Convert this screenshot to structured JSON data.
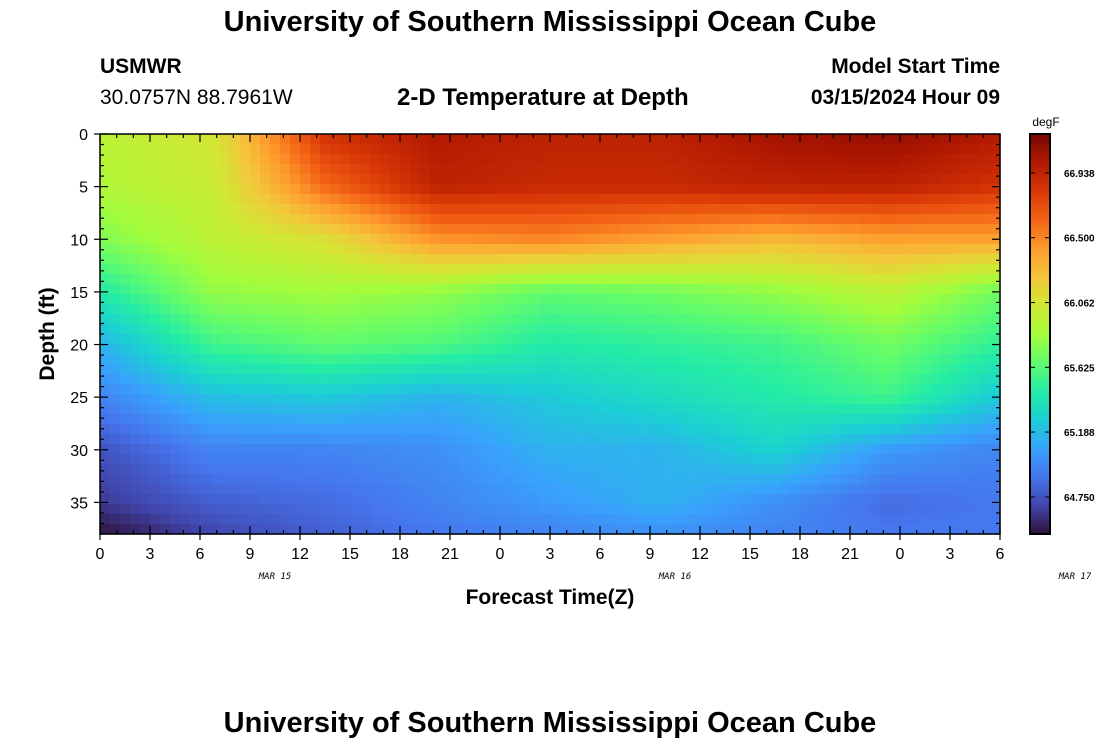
{
  "header": {
    "title": "University of Southern Mississippi Ocean Cube",
    "station": "USMWR",
    "coordinates": "30.0757N  88.7961W",
    "chart_title": "2-D Temperature at Depth",
    "model_start_label": "Model Start Time",
    "model_start_value": "03/15/2024 Hour 09"
  },
  "footer": {
    "title": "University of Southern Mississippi Ocean Cube"
  },
  "chart_data": {
    "type": "heatmap",
    "title": "2-D Temperature at Depth",
    "xlabel": "Forecast Time(Z)",
    "ylabel": "Depth (ft)",
    "x_tick_labels": [
      "0",
      "3",
      "6",
      "9",
      "12",
      "15",
      "18",
      "21",
      "0",
      "3",
      "6",
      "9",
      "12",
      "15",
      "18",
      "21",
      "0",
      "3",
      "6"
    ],
    "date_labels": [
      "MAR 15",
      "MAR 16",
      "MAR 17"
    ],
    "y_ticks": [
      0,
      5,
      10,
      15,
      20,
      25,
      30,
      35
    ],
    "ylim": [
      0,
      38
    ],
    "y_inverted": true,
    "grid": false,
    "colorbar": {
      "unit": "degF",
      "tick_values": [
        64.75,
        65.188,
        65.625,
        66.062,
        66.5,
        66.938
      ],
      "tick_labels": [
        "64.750",
        "65.188",
        "65.625",
        "66.062",
        "66.500",
        "66.938"
      ],
      "range": [
        64.5,
        67.2
      ],
      "colormap": [
        "#30123b",
        "#4145ab",
        "#4675ed",
        "#39a2fc",
        "#1bcfd4",
        "#24eca6",
        "#61fc6c",
        "#a4fc3b",
        "#d1e834",
        "#f3c63a",
        "#fe9b2d",
        "#f36315",
        "#d93806",
        "#b11901",
        "#7a0402"
      ]
    },
    "depths": [
      0,
      5,
      10,
      15,
      20,
      25,
      30,
      35,
      38
    ],
    "times": [
      0,
      6,
      12,
      18,
      24,
      30,
      36,
      42,
      48
    ],
    "values": [
      [
        65.95,
        66.05,
        66.85,
        67.0,
        66.95,
        66.95,
        67.05,
        67.1,
        67.0
      ],
      [
        65.9,
        66.0,
        66.6,
        66.95,
        66.9,
        66.9,
        66.95,
        66.95,
        66.85
      ],
      [
        65.75,
        65.95,
        66.1,
        66.45,
        66.5,
        66.4,
        66.3,
        66.4,
        66.4
      ],
      [
        65.45,
        65.8,
        65.85,
        65.8,
        65.65,
        65.7,
        65.8,
        65.95,
        65.7
      ],
      [
        65.15,
        65.55,
        65.65,
        65.6,
        65.45,
        65.5,
        65.55,
        65.7,
        65.5
      ],
      [
        64.95,
        65.2,
        65.25,
        65.15,
        65.25,
        65.35,
        65.45,
        65.55,
        65.25
      ],
      [
        64.75,
        64.95,
        64.95,
        65.0,
        65.15,
        65.15,
        65.3,
        65.05,
        64.95
      ],
      [
        64.65,
        64.8,
        64.85,
        64.95,
        65.05,
        65.15,
        65.0,
        64.85,
        64.9
      ],
      [
        64.5,
        64.7,
        64.8,
        64.9,
        64.95,
        65.0,
        64.95,
        64.9,
        64.9
      ]
    ]
  }
}
